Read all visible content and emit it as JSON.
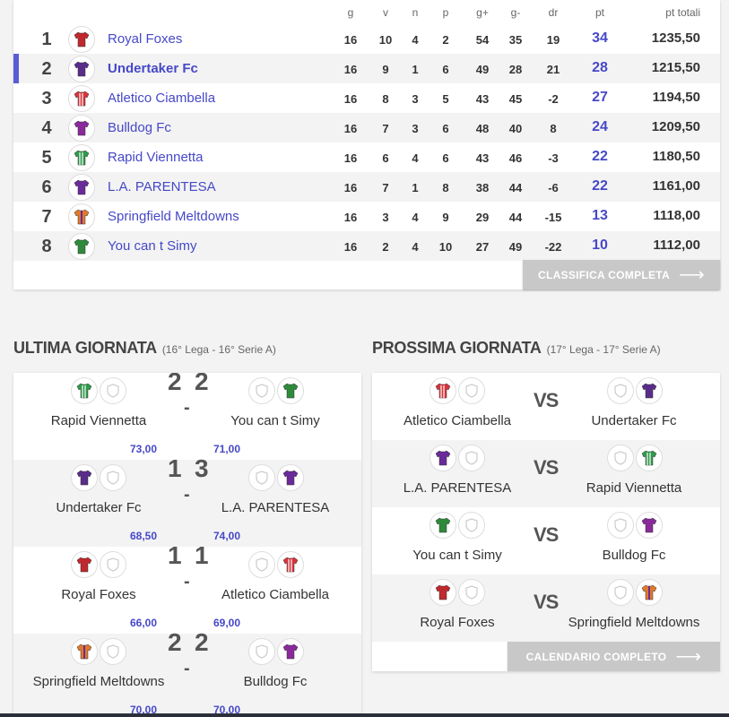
{
  "standings": {
    "headers": [
      "g",
      "v",
      "n",
      "p",
      "g+",
      "g-",
      "dr",
      "pt",
      "pt totali"
    ],
    "rows": [
      {
        "rank": "1",
        "team": "Royal Foxes",
        "g": "16",
        "v": "10",
        "n": "4",
        "p": "2",
        "gf": "54",
        "ga": "35",
        "dr": "19",
        "pt": "34",
        "tot": "1235,50",
        "shirt": "#c0282d",
        "stripe": "none"
      },
      {
        "rank": "2",
        "team": "Undertaker Fc",
        "g": "16",
        "v": "9",
        "n": "1",
        "p": "6",
        "gf": "49",
        "ga": "28",
        "dr": "21",
        "pt": "28",
        "tot": "1215,50",
        "shirt": "#5a2c8a",
        "stripe": "none"
      },
      {
        "rank": "3",
        "team": "Atletico Ciambella",
        "g": "16",
        "v": "8",
        "n": "3",
        "p": "5",
        "gf": "43",
        "ga": "45",
        "dr": "-2",
        "pt": "27",
        "tot": "1194,50",
        "shirt": "#d9333a",
        "stripe": "white"
      },
      {
        "rank": "4",
        "team": "Bulldog Fc",
        "g": "16",
        "v": "7",
        "n": "3",
        "p": "6",
        "gf": "48",
        "ga": "40",
        "dr": "8",
        "pt": "24",
        "tot": "1209,50",
        "shirt": "#8a2a9a",
        "stripe": "none"
      },
      {
        "rank": "5",
        "team": "Rapid Viennetta",
        "g": "16",
        "v": "6",
        "n": "4",
        "p": "6",
        "gf": "43",
        "ga": "46",
        "dr": "-3",
        "pt": "22",
        "tot": "1180,50",
        "shirt": "#2e9a4a",
        "stripe": "white"
      },
      {
        "rank": "6",
        "team": "L.A. PARENTESA",
        "g": "16",
        "v": "7",
        "n": "1",
        "p": "8",
        "gf": "38",
        "ga": "44",
        "dr": "-6",
        "pt": "22",
        "tot": "1161,00",
        "shirt": "#6a2a9a",
        "stripe": "none"
      },
      {
        "rank": "7",
        "team": "Springfield Meltdowns",
        "g": "16",
        "v": "3",
        "n": "4",
        "p": "9",
        "gf": "29",
        "ga": "44",
        "dr": "-15",
        "pt": "13",
        "tot": "1118,00",
        "shirt": "#e07a2a",
        "stripe": "purple"
      },
      {
        "rank": "8",
        "team": "You can t Simy",
        "g": "16",
        "v": "2",
        "n": "4",
        "p": "10",
        "gf": "27",
        "ga": "49",
        "dr": "-22",
        "pt": "10",
        "tot": "1112,00",
        "shirt": "#2e8a3a",
        "stripe": "none"
      }
    ],
    "button_label": "CLASSIFICA COMPLETA"
  },
  "last_round": {
    "title": "ULTIMA GIORNATA",
    "subtitle": "(16° Lega - 16° Serie A)",
    "matches": [
      {
        "home": "Rapid Viennetta",
        "away": "You can t Simy",
        "home_goals": "2",
        "away_goals": "2",
        "home_pts": "73,00",
        "away_pts": "71,00",
        "home_shirt": "#2e9a4a",
        "away_shirt": "#2e8a3a"
      },
      {
        "home": "Undertaker Fc",
        "away": "L.A. PARENTESA",
        "home_goals": "1",
        "away_goals": "3",
        "home_pts": "68,50",
        "away_pts": "74,00",
        "home_shirt": "#5a2c8a",
        "away_shirt": "#6a2a9a"
      },
      {
        "home": "Royal Foxes",
        "away": "Atletico Ciambella",
        "home_goals": "1",
        "away_goals": "1",
        "home_pts": "66,00",
        "away_pts": "69,00",
        "home_shirt": "#c0282d",
        "away_shirt": "#d9333a"
      },
      {
        "home": "Springfield Meltdowns",
        "away": "Bulldog Fc",
        "home_goals": "2",
        "away_goals": "2",
        "home_pts": "70,00",
        "away_pts": "70,00",
        "home_shirt": "#e07a2a",
        "away_shirt": "#8a2a9a"
      }
    ]
  },
  "next_round": {
    "title": "PROSSIMA GIORNATA",
    "subtitle": "(17° Lega - 17° Serie A)",
    "vs_label": "VS",
    "matches": [
      {
        "home": "Atletico Ciambella",
        "away": "Undertaker Fc",
        "home_shirt": "#d9333a",
        "away_shirt": "#5a2c8a"
      },
      {
        "home": "L.A. PARENTESA",
        "away": "Rapid Viennetta",
        "home_shirt": "#6a2a9a",
        "away_shirt": "#2e9a4a"
      },
      {
        "home": "You can t Simy",
        "away": "Bulldog Fc",
        "home_shirt": "#2e8a3a",
        "away_shirt": "#8a2a9a"
      },
      {
        "home": "Royal Foxes",
        "away": "Springfield Meltdowns",
        "home_shirt": "#c0282d",
        "away_shirt": "#e07a2a"
      }
    ],
    "button_label": "CALENDARIO COMPLETO"
  },
  "colors": {
    "accent": "#4648c8",
    "button_gray": "#c8c8c8"
  }
}
